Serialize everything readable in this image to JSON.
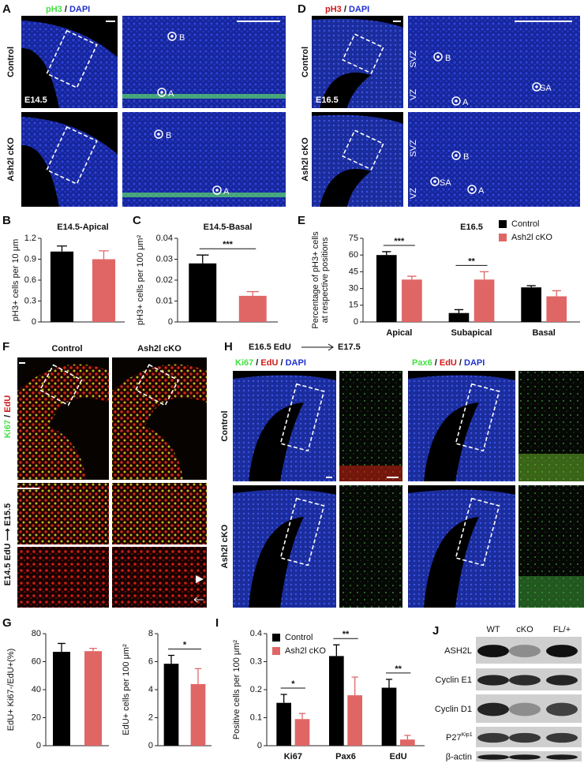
{
  "panel_a": {
    "letter": "A",
    "stain": [
      "pH3",
      " / ",
      "DAPI"
    ],
    "rows": [
      "Control",
      "Ash2l cKO"
    ],
    "stage": "E14.5",
    "markers": [
      "B",
      "A",
      "B",
      "A"
    ]
  },
  "panel_d": {
    "letter": "D",
    "stain": [
      "pH3",
      " / ",
      "DAPI"
    ],
    "rows": [
      "Control",
      "Ash2l cKO"
    ],
    "stage": "E16.5",
    "markers": [
      "B",
      "A",
      "SA",
      "B",
      "SA",
      "A"
    ],
    "zones": [
      "SVZ",
      "VZ",
      "SVZ",
      "VZ"
    ]
  },
  "panel_f": {
    "letter": "F",
    "columns": [
      "Control",
      "Ash2l cKO"
    ],
    "stain": [
      "Ki67",
      " / ",
      "EdU"
    ],
    "protocol": "E14.5 EdU ⟶ E15.5"
  },
  "panel_h": {
    "letter": "H",
    "protocol": [
      "E16.5 EdU",
      "E17.5"
    ],
    "stains": [
      [
        "Ki67",
        " / ",
        "EdU",
        " / ",
        "DAPI"
      ],
      [
        "Pax6",
        " / ",
        "EdU",
        " / ",
        "DAPI"
      ]
    ],
    "rows": [
      "Control",
      "Ash2l cKO"
    ]
  },
  "panel_j": {
    "letter": "J",
    "lanes": [
      "WT",
      "cKO",
      "FL/+"
    ],
    "proteins": [
      "ASH2L",
      "Cyclin E1",
      "Cyclin D1",
      "P27",
      "β-actin"
    ],
    "superscript": "Kip1"
  },
  "chart_data": [
    {
      "type": "bar",
      "panel": "B",
      "title": "E14.5-Apical",
      "ylabel": [
        "pH3+ cells per 10 μm"
      ],
      "categories": [
        null,
        null
      ],
      "values": [
        1.01,
        0.9
      ],
      "errors": [
        0.08,
        0.12
      ],
      "colors": [
        "#000000",
        "#e06666"
      ],
      "ylim": [
        0,
        1.2
      ],
      "yticks": [
        0,
        0.3,
        0.6,
        0.9,
        1.2
      ]
    },
    {
      "type": "bar",
      "panel": "C",
      "title": "E14.5-Basal",
      "ylabel": [
        "pH3+ cells per 100 μm²"
      ],
      "categories": [
        null,
        null
      ],
      "values": [
        0.028,
        0.0125
      ],
      "errors": [
        0.004,
        0.002
      ],
      "colors": [
        "#000000",
        "#e06666"
      ],
      "ylim": [
        0,
        0.04
      ],
      "yticks": [
        0,
        0.01,
        0.02,
        0.03,
        0.04
      ],
      "annotations": [
        "***"
      ]
    },
    {
      "type": "bar",
      "panel": "E",
      "title": "E16.5",
      "ylabel": [
        "Percentage of pH3+ cells",
        "at respective positions"
      ],
      "categories": [
        "Apical",
        "Subapical",
        "Basal"
      ],
      "series": [
        {
          "name": "Control",
          "color": "#000000",
          "values": [
            60,
            8,
            31
          ],
          "errors": [
            3,
            3,
            1.5
          ]
        },
        {
          "name": "Ash2l cKO",
          "color": "#e06666",
          "values": [
            38,
            38,
            23
          ],
          "errors": [
            3,
            7,
            5
          ]
        }
      ],
      "ylim": [
        0,
        75
      ],
      "yticks": [
        0,
        15,
        30,
        45,
        60,
        75
      ],
      "annotations": [
        "***",
        "**"
      ],
      "legend": "top-right"
    },
    {
      "type": "bar",
      "panel": "G",
      "ylabel": [
        "EdU+ Ki67-/EdU+(%)"
      ],
      "categories": [
        null,
        null
      ],
      "values": [
        67,
        67.5
      ],
      "errors": [
        6,
        2
      ],
      "colors": [
        "#000000",
        "#e06666"
      ],
      "ylim": [
        0,
        80
      ],
      "yticks": [
        0,
        20,
        40,
        60,
        80
      ]
    },
    {
      "type": "bar",
      "ylabel": [
        "EdU+ cells per 100 μm²"
      ],
      "categories": [
        null,
        null
      ],
      "values": [
        5.85,
        4.4
      ],
      "errors": [
        0.6,
        1.1
      ],
      "colors": [
        "#000000",
        "#e06666"
      ],
      "ylim": [
        0,
        8
      ],
      "yticks": [
        0,
        2,
        4,
        6,
        8
      ],
      "annotations": [
        "*"
      ]
    },
    {
      "type": "bar",
      "panel": "I",
      "ylabel": [
        "Positive cells per 100 μm²"
      ],
      "categories": [
        "Ki67",
        "Pax6",
        "EdU"
      ],
      "series": [
        {
          "name": "Control",
          "color": "#000000",
          "values": [
            0.153,
            0.32,
            0.207
          ],
          "errors": [
            0.03,
            0.04,
            0.03
          ]
        },
        {
          "name": "Ash2l cKO",
          "color": "#e06666",
          "values": [
            0.095,
            0.18,
            0.022
          ],
          "errors": [
            0.02,
            0.065,
            0.015
          ]
        }
      ],
      "ylim": [
        0,
        0.4
      ],
      "yticks": [
        0,
        0.1,
        0.2,
        0.3,
        0.4
      ],
      "annotations": [
        "*",
        "**",
        "**"
      ],
      "legend": "top-left"
    }
  ]
}
